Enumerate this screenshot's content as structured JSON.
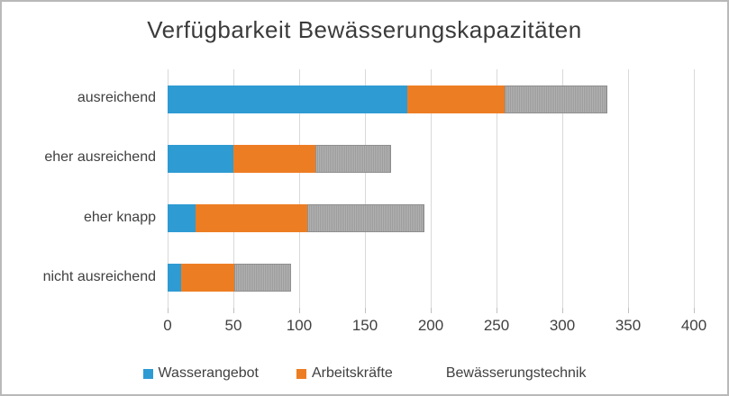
{
  "chart_data": {
    "type": "bar",
    "orientation": "horizontal",
    "stacked": true,
    "title": "Verfügbarkeit Bewässerungskapazitäten",
    "categories": [
      "ausreichend",
      "eher ausreichend",
      "eher knapp",
      "nicht ausreichend"
    ],
    "series": [
      {
        "name": "Wasserangebot",
        "color": "#2e9bd3",
        "pattern": "solid",
        "values": [
          182,
          50,
          21,
          10
        ]
      },
      {
        "name": "Arbeitskräfte",
        "color": "#ed7d23",
        "pattern": "solid",
        "values": [
          74,
          62,
          85,
          41
        ]
      },
      {
        "name": "Bewässerungstechnik",
        "color": "#a8a8a8",
        "pattern": "fine-vertical-stripes",
        "values": [
          78,
          58,
          89,
          43
        ]
      }
    ],
    "xlabel": "",
    "ylabel": "",
    "xlim": [
      0,
      400
    ],
    "x_ticks": [
      0,
      50,
      100,
      150,
      200,
      250,
      300,
      350,
      400
    ],
    "grid": true,
    "legend_position": "bottom",
    "gridline_color": "#d9d9d9",
    "tick_color": "#bfbfbf",
    "text_color": "#404040"
  }
}
